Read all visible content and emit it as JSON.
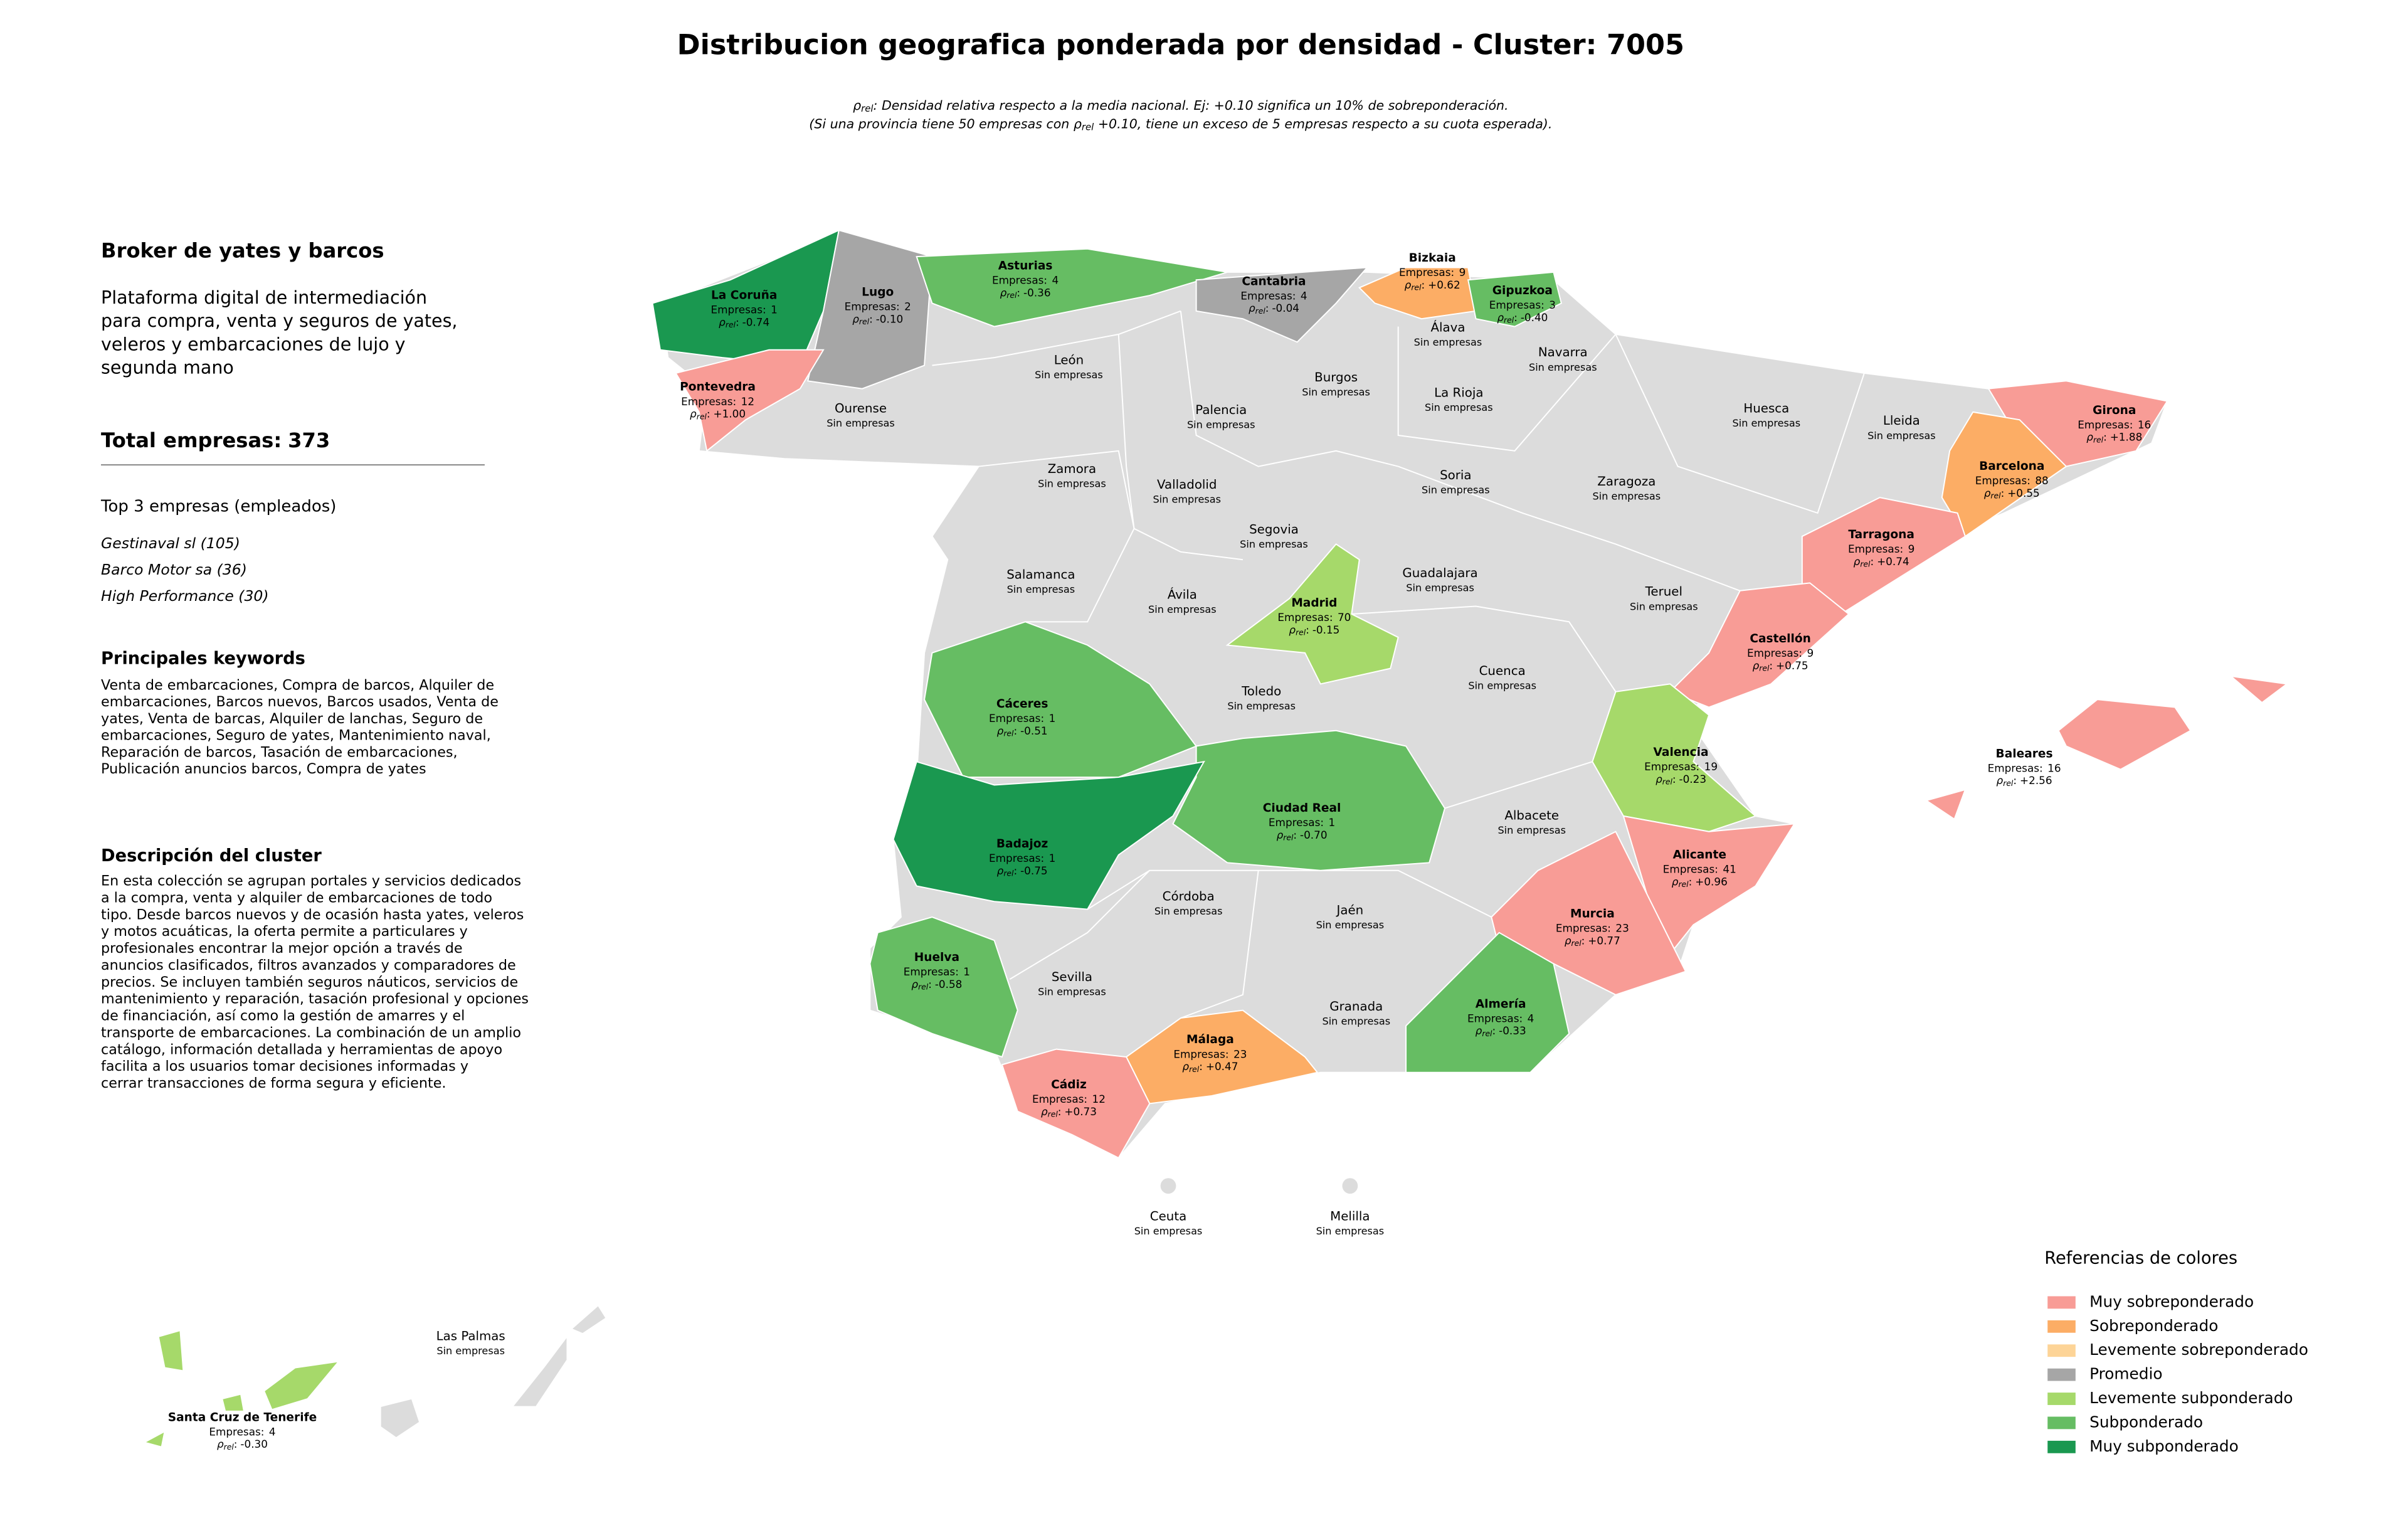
{
  "title": "Distribucion geografica ponderada por densidad - Cluster: 7005",
  "subtitle": {
    "line1": {
      "symbol": "ρ",
      "sub": "rel",
      "text": ": Densidad relativa respecto a la media nacional. Ej: +0.10 significa un 10% de sobreponderación."
    },
    "line2": {
      "pre": "(Si una provincia tiene 50 empresas con ",
      "symbol": "ρ",
      "sub": "rel",
      "post": " +0.10, tiene un exceso de 5 empresas respecto a su cuota esperada)."
    }
  },
  "sidebar": {
    "heading": "Broker de yates y barcos",
    "description": [
      "Plataforma digital de intermediación",
      "para compra, venta y seguros de yates,",
      "veleros y embarcaciones de lujo y",
      "segunda mano"
    ],
    "total_label": "Total empresas:",
    "total": 373,
    "top_title": "Top 3 empresas (empleados)",
    "top": [
      "Gestinaval sl (105)",
      "Barco Motor sa (36)",
      "High Performance (30)"
    ],
    "keywords_title": "Principales keywords",
    "keywords": [
      "Venta de embarcaciones, Compra de barcos, Alquiler de",
      "embarcaciones, Barcos nuevos, Barcos usados, Venta de",
      "yates, Venta de barcas, Alquiler de lanchas, Seguro de",
      "embarcaciones, Seguro de yates, Mantenimiento naval,",
      "Reparación de barcos, Tasación de embarcaciones,",
      "Publicación anuncios barcos, Compra de yates"
    ],
    "cluster_title": "Descripción del cluster",
    "cluster_text": [
      "En esta colección se agrupan portales y servicios dedicados",
      "a la compra, venta y alquiler de embarcaciones de todo",
      "tipo. Desde barcos nuevos y de ocasión hasta yates, veleros",
      "y motos acuáticas, la oferta permite a particulares y",
      "profesionales encontrar la mejor opción a través de",
      "anuncios clasificados, filtros avanzados y comparadores de",
      "precios. Se incluyen también seguros náuticos, servicios de",
      "mantenimiento y reparación, tasación profesional y opciones",
      "de financiación, así como la gestión de amarres y el",
      "transporte de embarcaciones. La combinación de un amplio",
      "catálogo, información detallada y herramientas de apoyo",
      "facilita a los usuarios tomar decisiones informadas y",
      "cerrar transacciones de forma segura y eficiente."
    ]
  },
  "map": {
    "count_prefix": "Empresas:",
    "rho_symbol": "ρ",
    "rho_sub": "rel",
    "rho_sep": ":",
    "no_data_label": "Sin empresas",
    "no_data_color": "#dcdcdc",
    "provinces": [
      {
        "name": "La Coruña",
        "empresas": 1,
        "rho": -0.74,
        "category": "Muy subponderado"
      },
      {
        "name": "Lugo",
        "empresas": 2,
        "rho": -0.1,
        "rho_label": "-0.10",
        "category": "Promedio"
      },
      {
        "name": "Asturias",
        "empresas": 4,
        "rho": -0.36,
        "category": "Subponderado"
      },
      {
        "name": "Cantabria",
        "empresas": 4,
        "rho": -0.04,
        "category": "Promedio"
      },
      {
        "name": "Bizkaia",
        "empresas": 9,
        "rho": 0.62,
        "rho_label": "+0.62",
        "category": "Sobreponderado"
      },
      {
        "name": "Gipuzkoa",
        "empresas": 3,
        "rho": -0.4,
        "rho_label": "-0.40",
        "category": "Subponderado"
      },
      {
        "name": "Pontevedra",
        "empresas": 12,
        "rho": 1.0,
        "rho_label": "+1.00",
        "category": "Muy sobreponderado"
      },
      {
        "name": "Girona",
        "empresas": 16,
        "rho": 1.88,
        "rho_label": "+1.88",
        "category": "Muy sobreponderado"
      },
      {
        "name": "Barcelona",
        "empresas": 88,
        "rho": 0.55,
        "rho_label": "+0.55",
        "category": "Sobreponderado"
      },
      {
        "name": "Tarragona",
        "empresas": 9,
        "rho": 0.74,
        "rho_label": "+0.74",
        "category": "Muy sobreponderado"
      },
      {
        "name": "Madrid",
        "empresas": 70,
        "rho": -0.15,
        "category": "Levemente subponderado"
      },
      {
        "name": "Castellón",
        "empresas": 9,
        "rho": 0.75,
        "rho_label": "+0.75",
        "category": "Muy sobreponderado"
      },
      {
        "name": "Cáceres",
        "empresas": 1,
        "rho": -0.51,
        "category": "Subponderado"
      },
      {
        "name": "Valencia",
        "empresas": 19,
        "rho": -0.23,
        "category": "Levemente subponderado"
      },
      {
        "name": "Baleares",
        "empresas": 16,
        "rho": 2.56,
        "rho_label": "+2.56",
        "category": "Muy sobreponderado"
      },
      {
        "name": "Ciudad Real",
        "empresas": 1,
        "rho": -0.7,
        "rho_label": "-0.70",
        "category": "Subponderado"
      },
      {
        "name": "Badajoz",
        "empresas": 1,
        "rho": -0.75,
        "category": "Muy subponderado"
      },
      {
        "name": "Alicante",
        "empresas": 41,
        "rho": 0.96,
        "rho_label": "+0.96",
        "category": "Muy sobreponderado"
      },
      {
        "name": "Murcia",
        "empresas": 23,
        "rho": 0.77,
        "rho_label": "+0.77",
        "category": "Muy sobreponderado"
      },
      {
        "name": "Huelva",
        "empresas": 1,
        "rho": -0.58,
        "category": "Subponderado"
      },
      {
        "name": "Almería",
        "empresas": 4,
        "rho": -0.33,
        "category": "Subponderado"
      },
      {
        "name": "Málaga",
        "empresas": 23,
        "rho": 0.47,
        "rho_label": "+0.47",
        "category": "Sobreponderado"
      },
      {
        "name": "Cádiz",
        "empresas": 12,
        "rho": 0.73,
        "rho_label": "+0.73",
        "category": "Muy sobreponderado"
      },
      {
        "name": "Santa Cruz de Tenerife",
        "empresas": 4,
        "rho": -0.3,
        "rho_label": "-0.30",
        "category": "Levemente subponderado"
      }
    ],
    "empty_provinces": [
      "León",
      "Ourense",
      "Palencia",
      "Burgos",
      "Álava",
      "La Rioja",
      "Navarra",
      "Huesca",
      "Lleida",
      "Zamora",
      "Valladolid",
      "Soria",
      "Zaragoza",
      "Segovia",
      "Salamanca",
      "Ávila",
      "Guadalajara",
      "Teruel",
      "Toledo",
      "Cuenca",
      "Albacete",
      "Córdoba",
      "Jaén",
      "Sevilla",
      "Granada",
      "Ceuta",
      "Melilla",
      "Las Palmas"
    ]
  },
  "legend": {
    "title": "Referencias de colores",
    "categories": [
      {
        "name": "Muy sobreponderado",
        "color": "#f89c96"
      },
      {
        "name": "Sobreponderado",
        "color": "#fcad65"
      },
      {
        "name": "Levemente sobreponderado",
        "color": "#fdd497"
      },
      {
        "name": "Promedio",
        "color": "#a6a6a6"
      },
      {
        "name": "Levemente subponderado",
        "color": "#a6d96a"
      },
      {
        "name": "Subponderado",
        "color": "#66bd63"
      },
      {
        "name": "Muy subponderado",
        "color": "#1a9850"
      }
    ]
  }
}
